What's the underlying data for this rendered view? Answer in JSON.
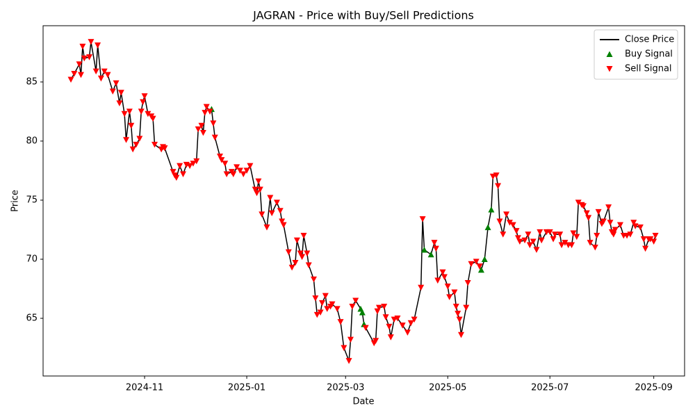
{
  "chart_data": {
    "type": "line",
    "title": "JAGRAN - Price with Buy/Sell Predictions",
    "x_label": "Date",
    "y_label": "Price",
    "xlim": [
      -60.6,
      322.4
    ],
    "xticks": [
      {
        "value": 0,
        "label": "2024-11"
      },
      {
        "value": 61,
        "label": "2025-01"
      },
      {
        "value": 120,
        "label": "2025-03"
      },
      {
        "value": 181,
        "label": "2025-05"
      },
      {
        "value": 242,
        "label": "2025-07"
      },
      {
        "value": 304,
        "label": "2025-09"
      }
    ],
    "ylim": [
      60.12,
      89.76
    ],
    "yticks": [
      65,
      70,
      75,
      80,
      85
    ],
    "grid": false,
    "legend": "upper right",
    "series": [
      {
        "name": "Close Price",
        "type": "line",
        "color": "#000000",
        "x": [
          -44,
          -42,
          -39,
          -38,
          -37,
          -36,
          -33,
          -32,
          -29,
          -28,
          -26,
          -24,
          -22,
          -19,
          -17,
          -15,
          -14,
          -12,
          -11,
          -9,
          -8,
          -7,
          -5,
          -3,
          -2,
          -1,
          0,
          2,
          4,
          5,
          6,
          10,
          11,
          12,
          17,
          18,
          19,
          21,
          23,
          25,
          27,
          29,
          31,
          32,
          34,
          35,
          36,
          37,
          39,
          40,
          41,
          42,
          45,
          46,
          48,
          49,
          52,
          53,
          55,
          57,
          59,
          61,
          63,
          66,
          67,
          68,
          69,
          70,
          73,
          75,
          76,
          79,
          81,
          82,
          83,
          86,
          88,
          90,
          91,
          93,
          94,
          95,
          97,
          98,
          101,
          102,
          103,
          105,
          106,
          108,
          109,
          111,
          112,
          115,
          117,
          119,
          122,
          123,
          124,
          126,
          129,
          130,
          131,
          132,
          137,
          138,
          139,
          140,
          143,
          144,
          146,
          147,
          149,
          151,
          154,
          157,
          159,
          161,
          165,
          166,
          167,
          171,
          173,
          174,
          175,
          178,
          179,
          181,
          182,
          185,
          186,
          187,
          188,
          189,
          192,
          193,
          195,
          198,
          200,
          201,
          203,
          205,
          207,
          208,
          210,
          211,
          212,
          214,
          216,
          218,
          220,
          222,
          223,
          224,
          227,
          229,
          230,
          232,
          234,
          236,
          237,
          240,
          242,
          244,
          245,
          248,
          249,
          251,
          253,
          255,
          256,
          258,
          259,
          261,
          262,
          264,
          265,
          266,
          269,
          270,
          271,
          273,
          274,
          277,
          278,
          279,
          280,
          281,
          284,
          286,
          288,
          290,
          292,
          293,
          296,
          298,
          299,
          301,
          302,
          304,
          305
        ],
        "values": [
          85.2,
          85.7,
          86.5,
          85.6,
          88.0,
          87.0,
          87.1,
          88.4,
          85.9,
          88.1,
          85.3,
          85.9,
          85.6,
          84.2,
          84.9,
          83.2,
          84.1,
          82.3,
          80.1,
          82.5,
          81.3,
          79.3,
          79.7,
          80.2,
          82.5,
          83.3,
          83.8,
          82.3,
          82.1,
          81.9,
          79.7,
          79.3,
          79.5,
          79.4,
          77.4,
          77.1,
          76.9,
          77.9,
          77.2,
          78.0,
          77.9,
          78.1,
          78.3,
          81.0,
          81.3,
          80.7,
          82.4,
          82.9,
          82.5,
          82.7,
          81.5,
          80.3,
          78.7,
          78.4,
          78.1,
          77.2,
          77.4,
          77.2,
          77.8,
          77.5,
          77.2,
          77.5,
          77.9,
          75.9,
          75.6,
          76.6,
          75.9,
          73.8,
          72.7,
          75.2,
          73.9,
          74.8,
          74.1,
          73.2,
          72.9,
          70.6,
          69.3,
          69.7,
          71.6,
          70.5,
          70.2,
          72.0,
          70.5,
          69.5,
          68.3,
          66.7,
          65.3,
          65.5,
          66.3,
          66.9,
          65.8,
          66.0,
          66.2,
          65.8,
          64.7,
          62.5,
          61.4,
          63.2,
          66.0,
          66.5,
          65.8,
          65.5,
          64.5,
          64.2,
          62.9,
          63.1,
          65.6,
          65.9,
          66.0,
          65.1,
          64.3,
          63.4,
          64.9,
          65.0,
          64.4,
          63.8,
          64.6,
          64.9,
          67.6,
          73.4,
          70.8,
          70.4,
          71.4,
          70.9,
          68.2,
          68.9,
          68.5,
          67.7,
          66.8,
          67.2,
          66.0,
          65.4,
          64.9,
          63.6,
          65.9,
          68.0,
          69.6,
          69.8,
          69.4,
          69.1,
          70.0,
          72.7,
          74.2,
          77.0,
          77.1,
          76.2,
          73.2,
          72.1,
          73.8,
          73.1,
          72.9,
          72.4,
          71.8,
          71.5,
          71.6,
          72.1,
          71.2,
          71.5,
          70.8,
          72.3,
          71.6,
          72.3,
          72.3,
          71.7,
          72.1,
          72.1,
          71.2,
          71.4,
          71.2,
          71.2,
          72.2,
          71.9,
          74.8,
          74.6,
          74.5,
          73.9,
          73.5,
          71.4,
          71.0,
          72.0,
          74.0,
          73.0,
          73.2,
          74.4,
          73.1,
          72.3,
          72.1,
          72.5,
          72.9,
          72.0,
          72.0,
          72.1,
          73.1,
          72.8,
          72.7,
          71.7,
          70.9,
          71.7,
          71.7,
          71.5,
          72.0
        ]
      },
      {
        "name": "Buy Signal",
        "type": "scatter",
        "marker": "triangle-up",
        "color": "#008000",
        "x": [
          40,
          129,
          130,
          131,
          167,
          171,
          201,
          203,
          205,
          207
        ],
        "values": [
          82.7,
          65.8,
          65.5,
          64.5,
          70.8,
          70.4,
          69.1,
          70.0,
          72.7,
          74.2
        ]
      },
      {
        "name": "Sell Signal",
        "type": "scatter",
        "marker": "triangle-down",
        "color": "#ff0000",
        "x": [
          -44,
          -42,
          -39,
          -38,
          -37,
          -36,
          -33,
          -32,
          -29,
          -28,
          -26,
          -24,
          -22,
          -19,
          -17,
          -15,
          -14,
          -12,
          -11,
          -9,
          -8,
          -7,
          -5,
          -3,
          -2,
          -1,
          0,
          2,
          4,
          5,
          6,
          10,
          11,
          12,
          17,
          18,
          19,
          21,
          23,
          25,
          27,
          29,
          31,
          32,
          34,
          35,
          36,
          37,
          39,
          41,
          42,
          45,
          46,
          48,
          49,
          52,
          53,
          55,
          57,
          59,
          61,
          63,
          66,
          67,
          68,
          69,
          70,
          73,
          75,
          76,
          79,
          81,
          82,
          83,
          86,
          88,
          90,
          91,
          93,
          94,
          95,
          97,
          98,
          101,
          102,
          103,
          105,
          106,
          108,
          109,
          111,
          112,
          115,
          117,
          119,
          122,
          123,
          124,
          126,
          132,
          137,
          138,
          139,
          140,
          143,
          144,
          146,
          147,
          149,
          151,
          154,
          157,
          159,
          161,
          165,
          166,
          173,
          174,
          175,
          178,
          179,
          181,
          182,
          185,
          186,
          187,
          188,
          189,
          192,
          193,
          195,
          198,
          200,
          208,
          210,
          211,
          212,
          214,
          216,
          218,
          220,
          222,
          223,
          224,
          227,
          229,
          230,
          232,
          234,
          236,
          237,
          240,
          242,
          244,
          245,
          248,
          249,
          251,
          253,
          255,
          256,
          258,
          259,
          261,
          262,
          264,
          265,
          266,
          269,
          270,
          271,
          273,
          274,
          277,
          278,
          279,
          280,
          281,
          284,
          286,
          288,
          290,
          292,
          293,
          296,
          298,
          299,
          301,
          302,
          304,
          305
        ],
        "values": [
          85.2,
          85.7,
          86.5,
          85.6,
          88.0,
          87.0,
          87.1,
          88.4,
          85.9,
          88.1,
          85.3,
          85.9,
          85.6,
          84.2,
          84.9,
          83.2,
          84.1,
          82.3,
          80.1,
          82.5,
          81.3,
          79.3,
          79.7,
          80.2,
          82.5,
          83.3,
          83.8,
          82.3,
          82.1,
          81.9,
          79.7,
          79.3,
          79.5,
          79.4,
          77.4,
          77.1,
          76.9,
          77.9,
          77.2,
          78.0,
          77.9,
          78.1,
          78.3,
          81.0,
          81.3,
          80.7,
          82.4,
          82.9,
          82.5,
          81.5,
          80.3,
          78.7,
          78.4,
          78.1,
          77.2,
          77.4,
          77.2,
          77.8,
          77.5,
          77.2,
          77.5,
          77.9,
          75.9,
          75.6,
          76.6,
          75.9,
          73.8,
          72.7,
          75.2,
          73.9,
          74.8,
          74.1,
          73.2,
          72.9,
          70.6,
          69.3,
          69.7,
          71.6,
          70.5,
          70.2,
          72.0,
          70.5,
          69.5,
          68.3,
          66.7,
          65.3,
          65.5,
          66.3,
          66.9,
          65.8,
          66.0,
          66.2,
          65.8,
          64.7,
          62.5,
          61.4,
          63.2,
          66.0,
          66.5,
          64.2,
          62.9,
          63.1,
          65.6,
          65.9,
          66.0,
          65.1,
          64.3,
          63.4,
          64.9,
          65.0,
          64.4,
          63.8,
          64.6,
          64.9,
          67.6,
          73.4,
          71.4,
          70.9,
          68.2,
          68.9,
          68.5,
          67.7,
          66.8,
          67.2,
          66.0,
          65.4,
          64.9,
          63.6,
          65.9,
          68.0,
          69.6,
          69.8,
          69.4,
          77.0,
          77.1,
          76.2,
          73.2,
          72.1,
          73.8,
          73.1,
          72.9,
          72.4,
          71.8,
          71.5,
          71.6,
          72.1,
          71.2,
          71.5,
          70.8,
          72.3,
          71.6,
          72.3,
          72.3,
          71.7,
          72.1,
          72.1,
          71.2,
          71.4,
          71.2,
          71.2,
          72.2,
          71.9,
          74.8,
          74.6,
          74.5,
          73.9,
          73.5,
          71.4,
          71.0,
          72.0,
          74.0,
          73.0,
          73.2,
          74.4,
          73.1,
          72.3,
          72.1,
          72.5,
          72.9,
          72.0,
          72.0,
          72.1,
          73.1,
          72.8,
          72.7,
          71.7,
          70.9,
          71.7,
          71.7,
          71.5,
          72.0
        ]
      }
    ]
  }
}
